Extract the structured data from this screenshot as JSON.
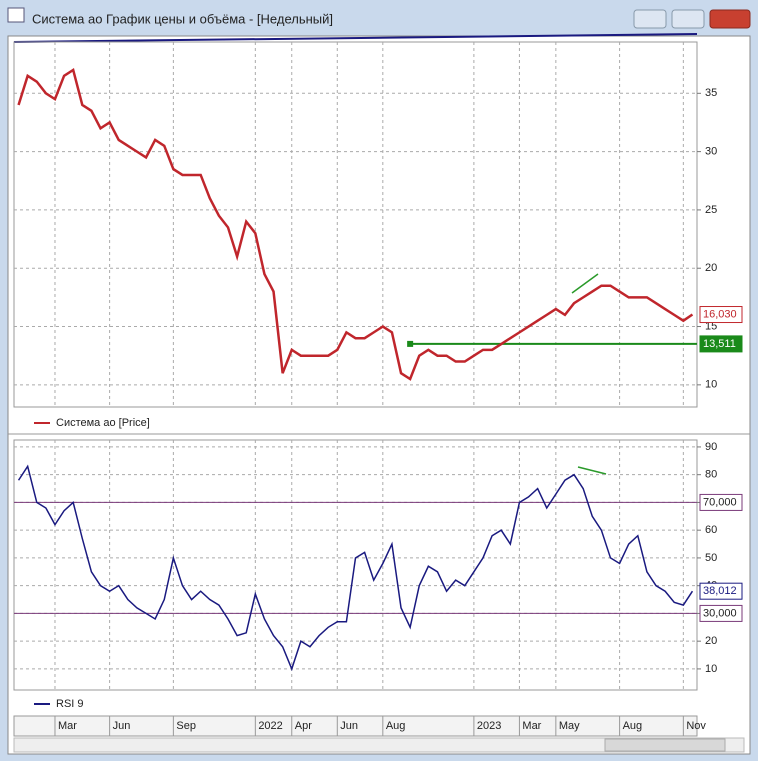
{
  "window": {
    "title": "Система ао График цены и объёма - [Недельный]"
  },
  "chart_data": [
    {
      "type": "line",
      "categories": [
        null,
        null,
        null,
        null,
        "Mar",
        null,
        null,
        null,
        null,
        null,
        "Jun",
        null,
        null,
        null,
        null,
        null,
        null,
        "Sep",
        null,
        null,
        null,
        null,
        null,
        null,
        null,
        null,
        "2022",
        null,
        null,
        null,
        "Apr",
        null,
        null,
        null,
        null,
        "Jun",
        null,
        null,
        null,
        null,
        "Aug",
        null,
        null,
        null,
        null,
        null,
        null,
        null,
        null,
        null,
        "2023",
        null,
        null,
        null,
        null,
        "Mar",
        null,
        null,
        null,
        "May",
        null,
        null,
        null,
        null,
        null,
        null,
        "Aug",
        null,
        null,
        null,
        null,
        null,
        null,
        "Nov",
        null
      ],
      "series": [
        {
          "name": "Система ао [Price]",
          "color": "#c0262c",
          "values": [
            34,
            36.5,
            36,
            35,
            34.5,
            36.5,
            37,
            34,
            33.5,
            32,
            32.5,
            31,
            30.5,
            30,
            29.5,
            31,
            30.5,
            28.5,
            28,
            28,
            28,
            26,
            24.5,
            23.5,
            21,
            24,
            23,
            19.5,
            18,
            11,
            13,
            12.5,
            12.5,
            12.5,
            12.5,
            13,
            14.5,
            14,
            14,
            14.5,
            15,
            14.5,
            11,
            10.5,
            12.5,
            13,
            12.5,
            12.5,
            12,
            12,
            12.5,
            13,
            13,
            13.5,
            14,
            14.5,
            15,
            15.5,
            16,
            16.5,
            16,
            17,
            17.5,
            18,
            18.5,
            18.5,
            18,
            17.5,
            17.5,
            17.5,
            17,
            16.5,
            16,
            15.5,
            16.03
          ]
        }
      ],
      "last_value_label": "16,030",
      "level": {
        "value": 13.511,
        "label": "13,511",
        "color": "#1a8a1a"
      },
      "ylim": [
        8.1,
        39.4
      ],
      "yticks": [
        10,
        15,
        20,
        25,
        30,
        35
      ],
      "grid": true
    },
    {
      "type": "line",
      "series": [
        {
          "name": "RSI 9",
          "color": "#1a1a80",
          "values": [
            78,
            83,
            70,
            68,
            62,
            67,
            70,
            57,
            45,
            40,
            38,
            40,
            35,
            32,
            30,
            28,
            35,
            50,
            40,
            35,
            38,
            35,
            33,
            28,
            22,
            23,
            37,
            28,
            22,
            18,
            10,
            20,
            18,
            22,
            25,
            27,
            27,
            50,
            52,
            42,
            48,
            55,
            32,
            25,
            40,
            47,
            45,
            38,
            42,
            40,
            45,
            50,
            58,
            60,
            55,
            70,
            72,
            75,
            68,
            73,
            78,
            80,
            75,
            65,
            60,
            50,
            48,
            55,
            58,
            45,
            40,
            38,
            34,
            33,
            38.012
          ]
        }
      ],
      "last_value_label": "38,012",
      "levels": [
        {
          "value": 70,
          "label": "70,000"
        },
        {
          "value": 30,
          "label": "30,000"
        }
      ],
      "level_color": "#7a3a7a",
      "ylim": [
        2.4,
        92.5
      ],
      "yticks": [
        10,
        20,
        30,
        40,
        50,
        60,
        70,
        80,
        90
      ],
      "grid": true
    }
  ]
}
